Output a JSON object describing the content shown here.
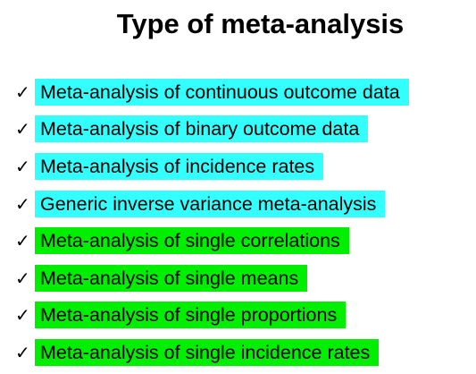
{
  "title": "Type of meta-analysis",
  "colors": {
    "continuous_highlight": "#33ffff",
    "single_highlight": "#00ee00",
    "text": "#000000"
  },
  "items": [
    {
      "icon": "check-icon",
      "label": "Meta-analysis of continuous outcome data",
      "highlight": "#33ffff"
    },
    {
      "icon": "check-icon",
      "label": "Meta-analysis of binary outcome data",
      "highlight": "#33ffff"
    },
    {
      "icon": "check-icon",
      "label": "Meta-analysis of incidence rates",
      "highlight": "#33ffff"
    },
    {
      "icon": "check-icon",
      "label": "Generic inverse variance meta-analysis",
      "highlight": "#33ffff"
    },
    {
      "icon": "check-icon",
      "label": "Meta-analysis of single correlations",
      "highlight": "#00ee00"
    },
    {
      "icon": "check-icon",
      "label": "Meta-analysis of single means",
      "highlight": "#00ee00"
    },
    {
      "icon": "check-icon",
      "label": "Meta-analysis of single proportions",
      "highlight": "#00ee00"
    },
    {
      "icon": "check-icon",
      "label": "Meta-analysis of single incidence rates",
      "highlight": "#00ee00"
    }
  ]
}
